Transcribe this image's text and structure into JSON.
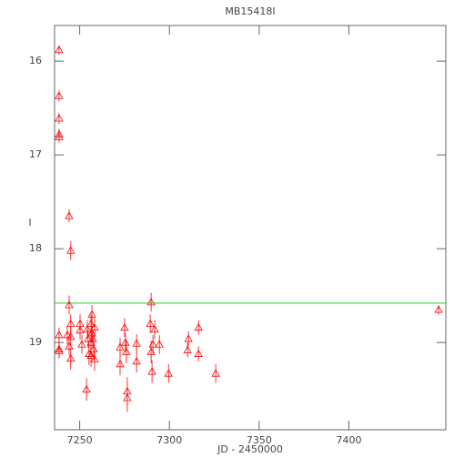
{
  "chart_data": {
    "type": "scatter",
    "title": "MB15418I",
    "x_label": "JD - 2450000",
    "y_label": "I",
    "x": [
      7238.5,
      7238.5,
      7238.5,
      7238.5,
      7238.5,
      7238.5,
      7238.5,
      7238.5,
      7244.1,
      7245,
      7244.1,
      7245,
      7243.1,
      7244.1,
      7245,
      7245,
      7250.2,
      7250.2,
      7251.2,
      7253.8,
      7254.2,
      7254.7,
      7255.2,
      7256.3,
      7256.3,
      7256.8,
      7256.8,
      7257.3,
      7257.8,
      7258.3,
      7258.3,
      7256.3,
      7272.5,
      7272.5,
      7275,
      7275.5,
      7276,
      7276.5,
      7276.5,
      7281.7,
      7281.7,
      7289.3,
      7289.8,
      7289.8,
      7290.3,
      7290.8,
      7291.8,
      7294.4,
      7299.5,
      7310.6,
      7310.1,
      7316.2,
      7316.2,
      7325.8,
      7450
    ],
    "values": [
      15.88,
      16.37,
      16.61,
      16.78,
      16.81,
      18.92,
      19.07,
      19.09,
      17.65,
      18.02,
      18.6,
      18.8,
      18.92,
      19.04,
      18.94,
      19.17,
      18.8,
      18.87,
      19.02,
      19.5,
      18.86,
      18.96,
      19.12,
      18.8,
      19.0,
      18.7,
      18.9,
      18.96,
      19.07,
      18.84,
      19.18,
      19.14,
      19.23,
      19.05,
      18.84,
      19.0,
      19.1,
      19.52,
      19.59,
      19.01,
      19.2,
      18.8,
      18.57,
      19.1,
      19.31,
      19.02,
      18.86,
      19.02,
      19.33,
      18.96,
      19.08,
      18.84,
      19.12,
      19.33,
      18.65
    ],
    "errors": [
      0.05,
      0.06,
      0.06,
      0.06,
      0.06,
      0.08,
      0.08,
      0.08,
      0.07,
      0.1,
      0.1,
      0.1,
      0.1,
      0.1,
      0.1,
      0.12,
      0.1,
      0.1,
      0.1,
      0.12,
      0.1,
      0.1,
      0.12,
      0.1,
      0.12,
      0.1,
      0.1,
      0.1,
      0.12,
      0.1,
      0.12,
      0.12,
      0.12,
      0.1,
      0.1,
      0.1,
      0.12,
      0.15,
      0.15,
      0.1,
      0.12,
      0.1,
      0.1,
      0.12,
      0.12,
      0.1,
      0.1,
      0.1,
      0.1,
      0.08,
      0.08,
      0.08,
      0.08,
      0.1,
      0.05
    ],
    "color": "#ff0000",
    "hline": 18.58,
    "hline_color": "#00cc00",
    "xlim": [
      7236,
      7454
    ],
    "ylim": [
      19.93,
      15.62
    ],
    "xticks": [
      7250,
      7300,
      7350,
      7400
    ],
    "yticks": [
      16,
      17,
      18,
      19
    ]
  }
}
